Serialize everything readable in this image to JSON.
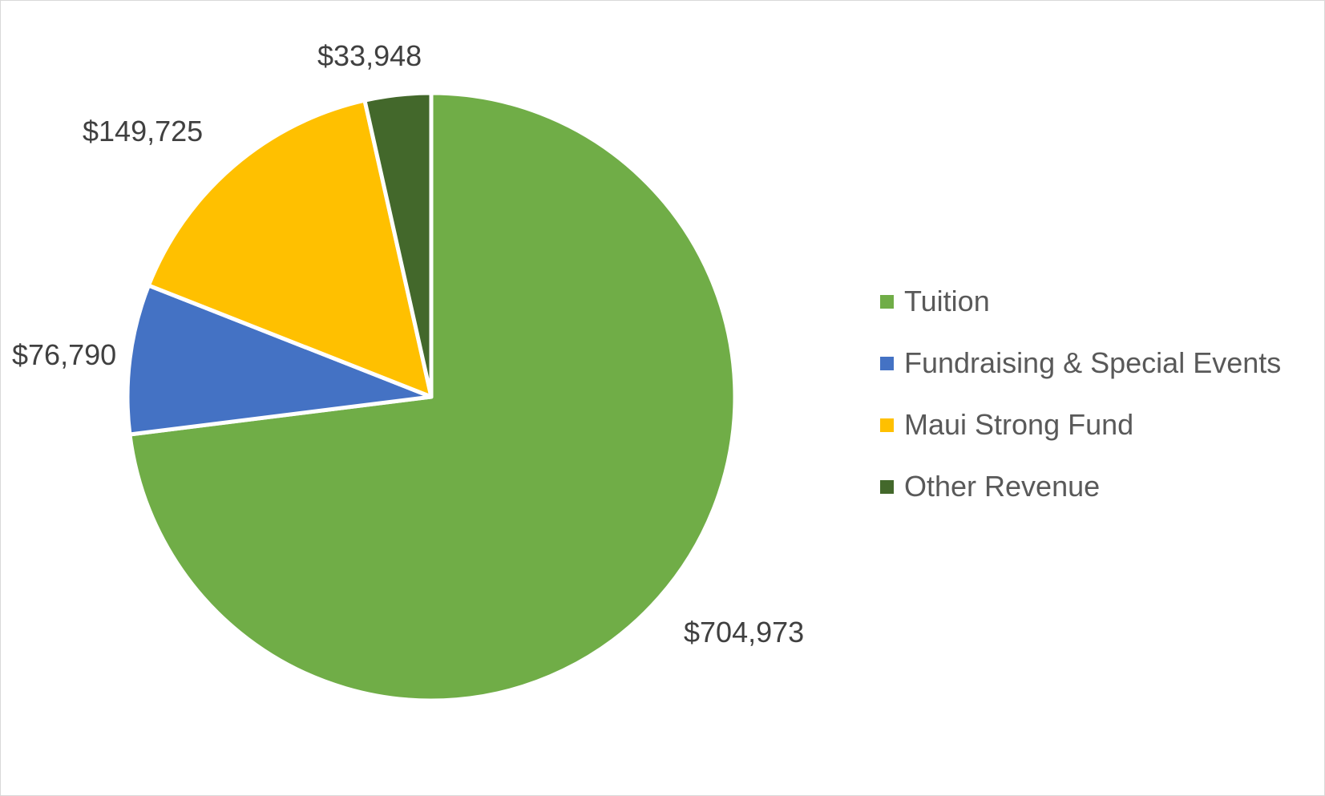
{
  "chart_data": {
    "type": "pie",
    "title": "",
    "categories": [
      "Tuition",
      "Fundraising & Special Events",
      "Maui Strong Fund",
      "Other Revenue"
    ],
    "values": [
      704973,
      76790,
      149725,
      33948
    ],
    "data_labels": [
      "$704,973",
      "$76,790",
      "$149,725",
      "$33,948"
    ],
    "colors": [
      "#70AD47",
      "#4472C4",
      "#FFC000",
      "#43682B"
    ],
    "start_angle_deg": 0,
    "direction": "clockwise",
    "legend_position": "right"
  }
}
